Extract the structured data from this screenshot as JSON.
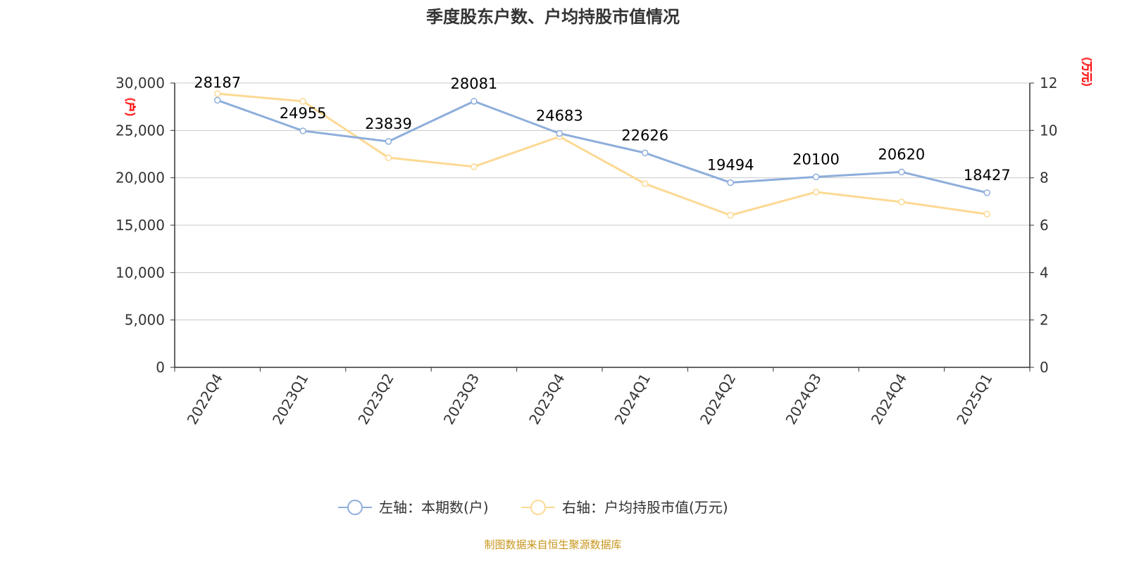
{
  "chart_data": {
    "type": "line",
    "title": "季度股东户数、户均持股市值情况",
    "categories": [
      "2022Q4",
      "2023Q1",
      "2023Q2",
      "2023Q3",
      "2023Q4",
      "2024Q1",
      "2024Q2",
      "2024Q3",
      "2024Q4",
      "2025Q1"
    ],
    "left_axis": {
      "unit": "(户)",
      "range": [
        0,
        30000
      ],
      "ticks": [
        "0",
        "5,000",
        "10,000",
        "15,000",
        "20,000",
        "25,000",
        "30,000"
      ]
    },
    "right_axis": {
      "unit": "(万元)",
      "range": [
        0,
        12
      ],
      "ticks": [
        "0",
        "2",
        "4",
        "6",
        "8",
        "10",
        "12"
      ]
    },
    "series": [
      {
        "name": "左轴：本期数(户)",
        "axis": "left",
        "color": "#8eaedb",
        "values": [
          28187,
          24955,
          23839,
          28081,
          24683,
          22626,
          19494,
          20100,
          20620,
          18427
        ],
        "labels": [
          "28187",
          "24955",
          "23839",
          "28081",
          "24683",
          "22626",
          "19494",
          "20100",
          "20620",
          "18427"
        ]
      },
      {
        "name": "右轴：户均持股市值(万元)",
        "axis": "right",
        "color": "#fcd994",
        "values": [
          11.55,
          11.23,
          8.85,
          8.47,
          9.74,
          7.75,
          6.42,
          7.4,
          6.98,
          6.47
        ]
      }
    ],
    "grid": true,
    "legend": "bottom"
  },
  "footer": {
    "source": "制图数据来自恒生聚源数据库"
  }
}
